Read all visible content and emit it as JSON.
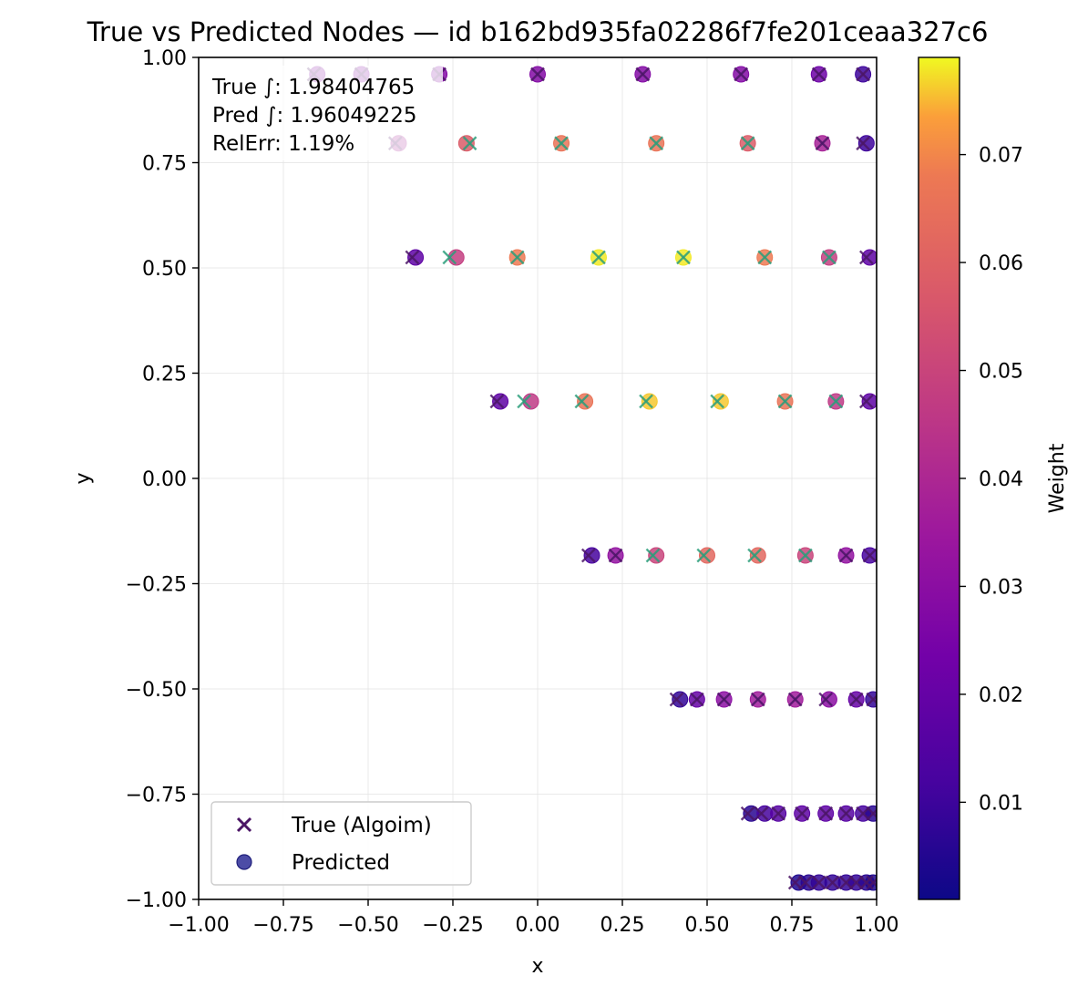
{
  "chart_data": {
    "type": "scatter",
    "title": "True vs Predicted Nodes — id b162bd935fa02286f7fe201ceaa327c6",
    "xlabel": "x",
    "ylabel": "y",
    "xlim": [
      -1.0,
      1.0
    ],
    "ylim": [
      -1.0,
      1.0
    ],
    "xticks": [
      "−1.00",
      "−0.75",
      "−0.50",
      "−0.25",
      "0.00",
      "0.25",
      "0.50",
      "0.75",
      "1.00"
    ],
    "yticks": [
      "−1.00",
      "−0.75",
      "−0.50",
      "−0.25",
      "0.00",
      "0.25",
      "0.50",
      "0.75",
      "1.00"
    ],
    "grid": true,
    "legend_position": "lower-left",
    "annotation": [
      "True ∫: 1.98404765",
      "Pred ∫: 1.96049225",
      "RelErr: 1.19%"
    ],
    "colorbar": {
      "label": "Weight",
      "range": [
        0.001,
        0.079
      ],
      "ticks": [
        "0.01",
        "0.02",
        "0.03",
        "0.04",
        "0.05",
        "0.06",
        "0.07"
      ],
      "colormap": "plasma"
    },
    "series": [
      {
        "name": "True (Algoim)",
        "marker": "x",
        "points": [
          {
            "x": -0.66,
            "y": 0.96,
            "w": 0.028
          },
          {
            "x": -0.52,
            "y": 0.96,
            "w": 0.028
          },
          {
            "x": -0.29,
            "y": 0.96,
            "w": 0.028
          },
          {
            "x": 0.0,
            "y": 0.96,
            "w": 0.028
          },
          {
            "x": 0.31,
            "y": 0.96,
            "w": 0.028
          },
          {
            "x": 0.6,
            "y": 0.96,
            "w": 0.028
          },
          {
            "x": 0.83,
            "y": 0.96,
            "w": 0.022
          },
          {
            "x": 0.96,
            "y": 0.96,
            "w": 0.01
          },
          {
            "x": -0.42,
            "y": 0.796,
            "w": 0.038
          },
          {
            "x": -0.2,
            "y": 0.796,
            "w": 0.058
          },
          {
            "x": 0.07,
            "y": 0.796,
            "w": 0.066
          },
          {
            "x": 0.35,
            "y": 0.796,
            "w": 0.066
          },
          {
            "x": 0.62,
            "y": 0.796,
            "w": 0.058
          },
          {
            "x": 0.84,
            "y": 0.796,
            "w": 0.038
          },
          {
            "x": 0.96,
            "y": 0.796,
            "w": 0.01
          },
          {
            "x": -0.37,
            "y": 0.525,
            "w": 0.018
          },
          {
            "x": -0.26,
            "y": 0.525,
            "w": 0.048
          },
          {
            "x": -0.06,
            "y": 0.525,
            "w": 0.068
          },
          {
            "x": 0.18,
            "y": 0.525,
            "w": 0.078
          },
          {
            "x": 0.43,
            "y": 0.525,
            "w": 0.078
          },
          {
            "x": 0.67,
            "y": 0.525,
            "w": 0.068
          },
          {
            "x": 0.86,
            "y": 0.525,
            "w": 0.048
          },
          {
            "x": 0.97,
            "y": 0.525,
            "w": 0.018
          },
          {
            "x": -0.12,
            "y": 0.183,
            "w": 0.018
          },
          {
            "x": -0.04,
            "y": 0.183,
            "w": 0.046
          },
          {
            "x": 0.13,
            "y": 0.183,
            "w": 0.066
          },
          {
            "x": 0.32,
            "y": 0.183,
            "w": 0.076
          },
          {
            "x": 0.53,
            "y": 0.183,
            "w": 0.076
          },
          {
            "x": 0.73,
            "y": 0.183,
            "w": 0.066
          },
          {
            "x": 0.88,
            "y": 0.183,
            "w": 0.046
          },
          {
            "x": 0.97,
            "y": 0.183,
            "w": 0.018
          },
          {
            "x": 0.15,
            "y": -0.183,
            "w": 0.012
          },
          {
            "x": 0.23,
            "y": -0.183,
            "w": 0.032
          },
          {
            "x": 0.34,
            "y": -0.183,
            "w": 0.05
          },
          {
            "x": 0.49,
            "y": -0.183,
            "w": 0.062
          },
          {
            "x": 0.64,
            "y": -0.183,
            "w": 0.062
          },
          {
            "x": 0.79,
            "y": -0.183,
            "w": 0.05
          },
          {
            "x": 0.91,
            "y": -0.183,
            "w": 0.032
          },
          {
            "x": 0.98,
            "y": -0.183,
            "w": 0.012
          },
          {
            "x": 0.41,
            "y": -0.525,
            "w": 0.008
          },
          {
            "x": 0.47,
            "y": -0.525,
            "w": 0.02
          },
          {
            "x": 0.55,
            "y": -0.525,
            "w": 0.03
          },
          {
            "x": 0.65,
            "y": -0.525,
            "w": 0.036
          },
          {
            "x": 0.76,
            "y": -0.525,
            "w": 0.036
          },
          {
            "x": 0.85,
            "y": -0.525,
            "w": 0.03
          },
          {
            "x": 0.94,
            "y": -0.525,
            "w": 0.02
          },
          {
            "x": 0.99,
            "y": -0.525,
            "w": 0.008
          },
          {
            "x": 0.62,
            "y": -0.796,
            "w": 0.006
          },
          {
            "x": 0.66,
            "y": -0.796,
            "w": 0.012
          },
          {
            "x": 0.71,
            "y": -0.796,
            "w": 0.016
          },
          {
            "x": 0.78,
            "y": -0.796,
            "w": 0.018
          },
          {
            "x": 0.85,
            "y": -0.796,
            "w": 0.018
          },
          {
            "x": 0.91,
            "y": -0.796,
            "w": 0.016
          },
          {
            "x": 0.96,
            "y": -0.796,
            "w": 0.012
          },
          {
            "x": 0.99,
            "y": -0.796,
            "w": 0.006
          },
          {
            "x": 0.76,
            "y": -0.96,
            "w": 0.004
          },
          {
            "x": 0.79,
            "y": -0.96,
            "w": 0.006
          },
          {
            "x": 0.83,
            "y": -0.96,
            "w": 0.008
          },
          {
            "x": 0.87,
            "y": -0.96,
            "w": 0.008
          },
          {
            "x": 0.91,
            "y": -0.96,
            "w": 0.008
          },
          {
            "x": 0.94,
            "y": -0.96,
            "w": 0.008
          },
          {
            "x": 0.97,
            "y": -0.96,
            "w": 0.006
          },
          {
            "x": 0.99,
            "y": -0.96,
            "w": 0.004
          }
        ]
      },
      {
        "name": "Predicted",
        "marker": "o",
        "points": [
          {
            "x": -0.65,
            "y": 0.96,
            "w": 0.028
          },
          {
            "x": -0.52,
            "y": 0.96,
            "w": 0.028
          },
          {
            "x": -0.29,
            "y": 0.96,
            "w": 0.028
          },
          {
            "x": 0.0,
            "y": 0.96,
            "w": 0.028
          },
          {
            "x": 0.31,
            "y": 0.96,
            "w": 0.028
          },
          {
            "x": 0.6,
            "y": 0.96,
            "w": 0.028
          },
          {
            "x": 0.83,
            "y": 0.96,
            "w": 0.022
          },
          {
            "x": 0.96,
            "y": 0.96,
            "w": 0.01
          },
          {
            "x": -0.41,
            "y": 0.796,
            "w": 0.038
          },
          {
            "x": -0.21,
            "y": 0.796,
            "w": 0.058
          },
          {
            "x": 0.07,
            "y": 0.796,
            "w": 0.066
          },
          {
            "x": 0.35,
            "y": 0.796,
            "w": 0.066
          },
          {
            "x": 0.62,
            "y": 0.796,
            "w": 0.058
          },
          {
            "x": 0.84,
            "y": 0.796,
            "w": 0.038
          },
          {
            "x": 0.97,
            "y": 0.796,
            "w": 0.01
          },
          {
            "x": -0.36,
            "y": 0.525,
            "w": 0.018
          },
          {
            "x": -0.24,
            "y": 0.525,
            "w": 0.048
          },
          {
            "x": -0.06,
            "y": 0.525,
            "w": 0.068
          },
          {
            "x": 0.18,
            "y": 0.525,
            "w": 0.078
          },
          {
            "x": 0.43,
            "y": 0.525,
            "w": 0.078
          },
          {
            "x": 0.67,
            "y": 0.525,
            "w": 0.068
          },
          {
            "x": 0.86,
            "y": 0.525,
            "w": 0.048
          },
          {
            "x": 0.98,
            "y": 0.525,
            "w": 0.018
          },
          {
            "x": -0.11,
            "y": 0.183,
            "w": 0.018
          },
          {
            "x": -0.02,
            "y": 0.183,
            "w": 0.046
          },
          {
            "x": 0.14,
            "y": 0.183,
            "w": 0.066
          },
          {
            "x": 0.33,
            "y": 0.183,
            "w": 0.076
          },
          {
            "x": 0.54,
            "y": 0.183,
            "w": 0.076
          },
          {
            "x": 0.73,
            "y": 0.183,
            "w": 0.066
          },
          {
            "x": 0.88,
            "y": 0.183,
            "w": 0.046
          },
          {
            "x": 0.98,
            "y": 0.183,
            "w": 0.018
          },
          {
            "x": 0.16,
            "y": -0.183,
            "w": 0.012
          },
          {
            "x": 0.23,
            "y": -0.183,
            "w": 0.032
          },
          {
            "x": 0.35,
            "y": -0.183,
            "w": 0.05
          },
          {
            "x": 0.5,
            "y": -0.183,
            "w": 0.062
          },
          {
            "x": 0.65,
            "y": -0.183,
            "w": 0.062
          },
          {
            "x": 0.79,
            "y": -0.183,
            "w": 0.05
          },
          {
            "x": 0.91,
            "y": -0.183,
            "w": 0.032
          },
          {
            "x": 0.98,
            "y": -0.183,
            "w": 0.012
          },
          {
            "x": 0.42,
            "y": -0.525,
            "w": 0.008
          },
          {
            "x": 0.47,
            "y": -0.525,
            "w": 0.02
          },
          {
            "x": 0.55,
            "y": -0.525,
            "w": 0.03
          },
          {
            "x": 0.65,
            "y": -0.525,
            "w": 0.036
          },
          {
            "x": 0.76,
            "y": -0.525,
            "w": 0.036
          },
          {
            "x": 0.86,
            "y": -0.525,
            "w": 0.03
          },
          {
            "x": 0.94,
            "y": -0.525,
            "w": 0.02
          },
          {
            "x": 0.99,
            "y": -0.525,
            "w": 0.008
          },
          {
            "x": 0.63,
            "y": -0.796,
            "w": 0.006
          },
          {
            "x": 0.67,
            "y": -0.796,
            "w": 0.012
          },
          {
            "x": 0.71,
            "y": -0.796,
            "w": 0.016
          },
          {
            "x": 0.78,
            "y": -0.796,
            "w": 0.018
          },
          {
            "x": 0.85,
            "y": -0.796,
            "w": 0.018
          },
          {
            "x": 0.91,
            "y": -0.796,
            "w": 0.016
          },
          {
            "x": 0.96,
            "y": -0.796,
            "w": 0.012
          },
          {
            "x": 0.99,
            "y": -0.796,
            "w": 0.006
          },
          {
            "x": 0.77,
            "y": -0.96,
            "w": 0.004
          },
          {
            "x": 0.8,
            "y": -0.96,
            "w": 0.006
          },
          {
            "x": 0.83,
            "y": -0.96,
            "w": 0.008
          },
          {
            "x": 0.87,
            "y": -0.96,
            "w": 0.008
          },
          {
            "x": 0.91,
            "y": -0.96,
            "w": 0.008
          },
          {
            "x": 0.94,
            "y": -0.96,
            "w": 0.008
          },
          {
            "x": 0.97,
            "y": -0.96,
            "w": 0.006
          },
          {
            "x": 0.99,
            "y": -0.96,
            "w": 0.004
          }
        ]
      }
    ]
  }
}
